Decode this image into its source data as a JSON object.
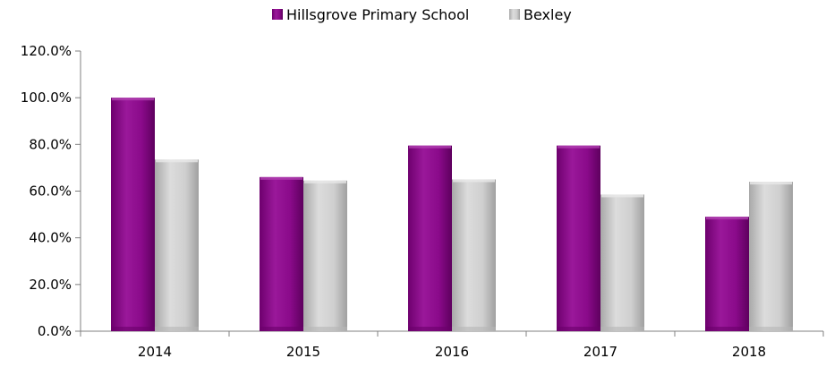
{
  "chart_data": {
    "type": "bar",
    "title": "",
    "xlabel": "",
    "ylabel": "",
    "categories": [
      "2014",
      "2015",
      "2016",
      "2017",
      "2018"
    ],
    "series": [
      {
        "name": "Hillsgrove Primary School",
        "values": [
          100.0,
          66.0,
          79.5,
          79.5,
          49.0
        ],
        "color": "#8a0a8a"
      },
      {
        "name": "Bexley",
        "values": [
          73.5,
          64.5,
          65.0,
          58.5,
          64.0
        ],
        "color": "#c8c8c8"
      }
    ],
    "ylim": [
      0,
      120
    ],
    "yticks": [
      "0.0%",
      "20.0%",
      "40.0%",
      "60.0%",
      "80.0%",
      "100.0%",
      "120.0%"
    ],
    "grid": false,
    "legend_position": "top-center"
  }
}
